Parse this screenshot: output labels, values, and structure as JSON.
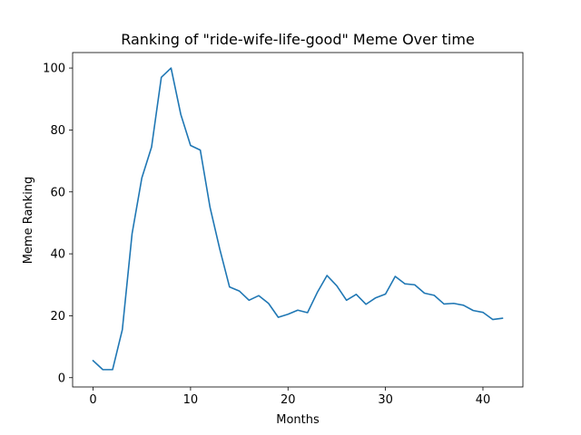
{
  "chart_data": {
    "type": "line",
    "title": "Ranking of \"ride-wife-life-good\" Meme Over time",
    "xlabel": "Months",
    "ylabel": "Meme Ranking",
    "xlim": [
      -2.1,
      44.1
    ],
    "ylim": [
      -3.0,
      105.0
    ],
    "xticks": [
      0,
      10,
      20,
      30,
      40
    ],
    "yticks": [
      0,
      20,
      40,
      60,
      80,
      100
    ],
    "grid": false,
    "legend": "none",
    "series": [
      {
        "color": "#1f77b4",
        "x": [
          0,
          1,
          2,
          3,
          4,
          5,
          6,
          7,
          8,
          9,
          10,
          11,
          12,
          13,
          14,
          15,
          16,
          17,
          18,
          19,
          20,
          21,
          22,
          23,
          24,
          25,
          26,
          27,
          28,
          29,
          30,
          31,
          32,
          33,
          34,
          35,
          36,
          37,
          38,
          39,
          40,
          41,
          42
        ],
        "values": [
          5.5,
          2.6,
          2.6,
          15.5,
          46.5,
          64.5,
          74.5,
          97,
          100,
          85,
          75,
          73.5,
          55,
          41.5,
          29.3,
          28,
          25,
          26.5,
          24,
          19.5,
          20.5,
          21.8,
          21,
          27.5,
          33,
          29.7,
          25,
          26.9,
          23.7,
          25.8,
          27,
          32.7,
          30.3,
          30,
          27.3,
          26.6,
          23.8,
          24,
          23.4,
          21.7,
          21.1,
          18.8,
          19.2
        ]
      }
    ]
  }
}
